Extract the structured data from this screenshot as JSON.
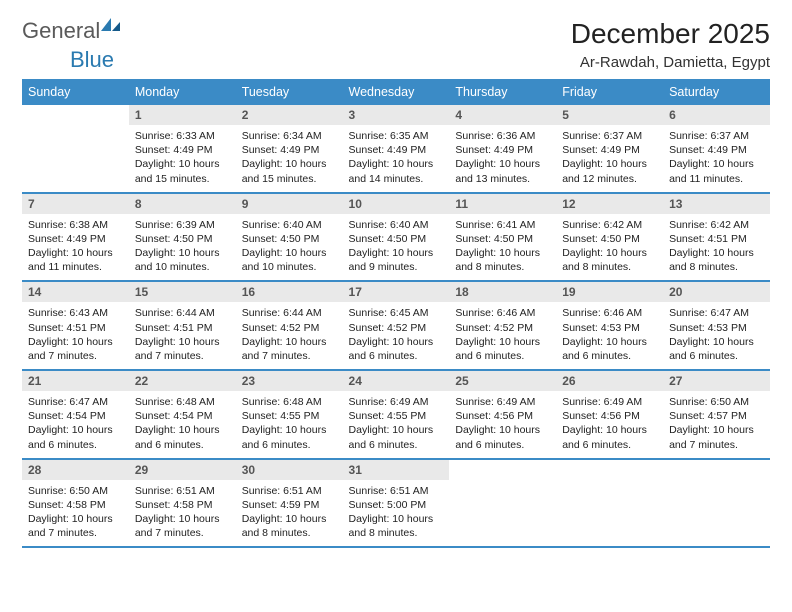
{
  "logo": {
    "text1": "General",
    "text2": "Blue"
  },
  "title": "December 2025",
  "location": "Ar-Rawdah, Damietta, Egypt",
  "colors": {
    "header_bg": "#3b8bc6",
    "header_fg": "#ffffff",
    "daynum_bg": "#e9e9e9",
    "daynum_fg": "#555555",
    "rule": "#3b8bc6",
    "logo_gray": "#5a5a5a",
    "logo_blue": "#2a7ab0"
  },
  "day_headers": [
    "Sunday",
    "Monday",
    "Tuesday",
    "Wednesday",
    "Thursday",
    "Friday",
    "Saturday"
  ],
  "weeks": [
    [
      null,
      {
        "n": "1",
        "sunrise": "6:33 AM",
        "sunset": "4:49 PM",
        "daylight": "10 hours and 15 minutes."
      },
      {
        "n": "2",
        "sunrise": "6:34 AM",
        "sunset": "4:49 PM",
        "daylight": "10 hours and 15 minutes."
      },
      {
        "n": "3",
        "sunrise": "6:35 AM",
        "sunset": "4:49 PM",
        "daylight": "10 hours and 14 minutes."
      },
      {
        "n": "4",
        "sunrise": "6:36 AM",
        "sunset": "4:49 PM",
        "daylight": "10 hours and 13 minutes."
      },
      {
        "n": "5",
        "sunrise": "6:37 AM",
        "sunset": "4:49 PM",
        "daylight": "10 hours and 12 minutes."
      },
      {
        "n": "6",
        "sunrise": "6:37 AM",
        "sunset": "4:49 PM",
        "daylight": "10 hours and 11 minutes."
      }
    ],
    [
      {
        "n": "7",
        "sunrise": "6:38 AM",
        "sunset": "4:49 PM",
        "daylight": "10 hours and 11 minutes."
      },
      {
        "n": "8",
        "sunrise": "6:39 AM",
        "sunset": "4:50 PM",
        "daylight": "10 hours and 10 minutes."
      },
      {
        "n": "9",
        "sunrise": "6:40 AM",
        "sunset": "4:50 PM",
        "daylight": "10 hours and 10 minutes."
      },
      {
        "n": "10",
        "sunrise": "6:40 AM",
        "sunset": "4:50 PM",
        "daylight": "10 hours and 9 minutes."
      },
      {
        "n": "11",
        "sunrise": "6:41 AM",
        "sunset": "4:50 PM",
        "daylight": "10 hours and 8 minutes."
      },
      {
        "n": "12",
        "sunrise": "6:42 AM",
        "sunset": "4:50 PM",
        "daylight": "10 hours and 8 minutes."
      },
      {
        "n": "13",
        "sunrise": "6:42 AM",
        "sunset": "4:51 PM",
        "daylight": "10 hours and 8 minutes."
      }
    ],
    [
      {
        "n": "14",
        "sunrise": "6:43 AM",
        "sunset": "4:51 PM",
        "daylight": "10 hours and 7 minutes."
      },
      {
        "n": "15",
        "sunrise": "6:44 AM",
        "sunset": "4:51 PM",
        "daylight": "10 hours and 7 minutes."
      },
      {
        "n": "16",
        "sunrise": "6:44 AM",
        "sunset": "4:52 PM",
        "daylight": "10 hours and 7 minutes."
      },
      {
        "n": "17",
        "sunrise": "6:45 AM",
        "sunset": "4:52 PM",
        "daylight": "10 hours and 6 minutes."
      },
      {
        "n": "18",
        "sunrise": "6:46 AM",
        "sunset": "4:52 PM",
        "daylight": "10 hours and 6 minutes."
      },
      {
        "n": "19",
        "sunrise": "6:46 AM",
        "sunset": "4:53 PM",
        "daylight": "10 hours and 6 minutes."
      },
      {
        "n": "20",
        "sunrise": "6:47 AM",
        "sunset": "4:53 PM",
        "daylight": "10 hours and 6 minutes."
      }
    ],
    [
      {
        "n": "21",
        "sunrise": "6:47 AM",
        "sunset": "4:54 PM",
        "daylight": "10 hours and 6 minutes."
      },
      {
        "n": "22",
        "sunrise": "6:48 AM",
        "sunset": "4:54 PM",
        "daylight": "10 hours and 6 minutes."
      },
      {
        "n": "23",
        "sunrise": "6:48 AM",
        "sunset": "4:55 PM",
        "daylight": "10 hours and 6 minutes."
      },
      {
        "n": "24",
        "sunrise": "6:49 AM",
        "sunset": "4:55 PM",
        "daylight": "10 hours and 6 minutes."
      },
      {
        "n": "25",
        "sunrise": "6:49 AM",
        "sunset": "4:56 PM",
        "daylight": "10 hours and 6 minutes."
      },
      {
        "n": "26",
        "sunrise": "6:49 AM",
        "sunset": "4:56 PM",
        "daylight": "10 hours and 6 minutes."
      },
      {
        "n": "27",
        "sunrise": "6:50 AM",
        "sunset": "4:57 PM",
        "daylight": "10 hours and 7 minutes."
      }
    ],
    [
      {
        "n": "28",
        "sunrise": "6:50 AM",
        "sunset": "4:58 PM",
        "daylight": "10 hours and 7 minutes."
      },
      {
        "n": "29",
        "sunrise": "6:51 AM",
        "sunset": "4:58 PM",
        "daylight": "10 hours and 7 minutes."
      },
      {
        "n": "30",
        "sunrise": "6:51 AM",
        "sunset": "4:59 PM",
        "daylight": "10 hours and 8 minutes."
      },
      {
        "n": "31",
        "sunrise": "6:51 AM",
        "sunset": "5:00 PM",
        "daylight": "10 hours and 8 minutes."
      },
      null,
      null,
      null
    ]
  ],
  "labels": {
    "sunrise": "Sunrise:",
    "sunset": "Sunset:",
    "daylight": "Daylight:"
  }
}
